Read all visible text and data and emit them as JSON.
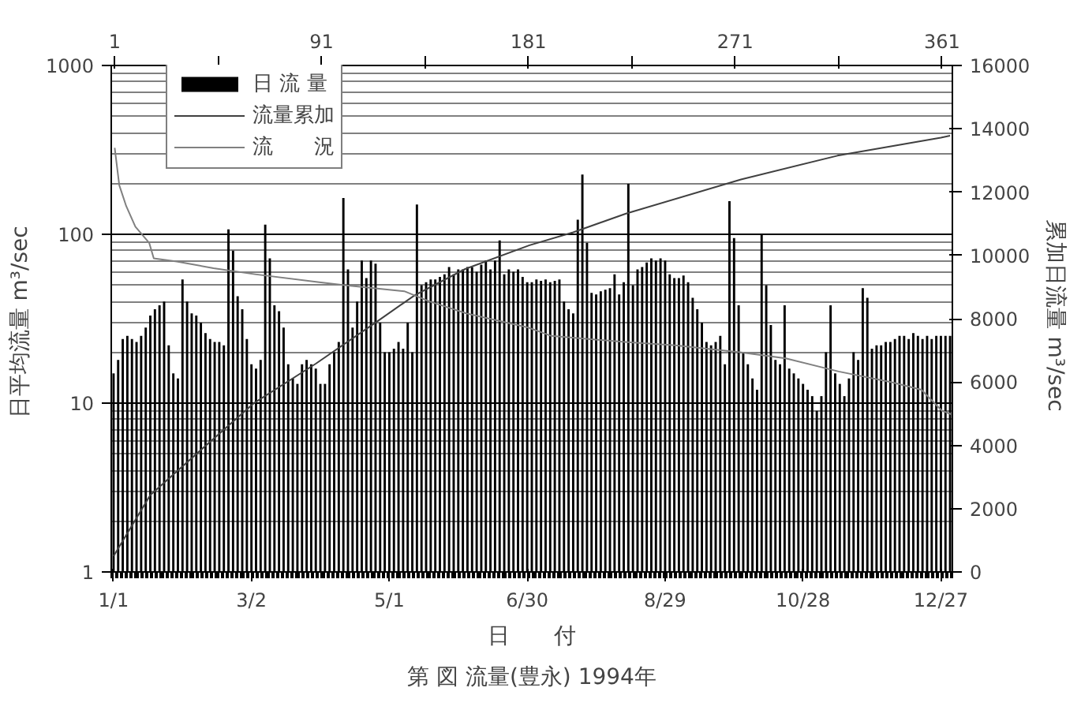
{
  "chart_data": {
    "type": "bar",
    "title": "第 図 流量(豊永) 1994年",
    "xlabel": "日　　付",
    "ylabel": "日平均流量  m³/sec",
    "y2label": "累加日流量  m³/sec",
    "xlim": [
      "1993-12-31T00:00",
      "1995-01-01T00:00"
    ],
    "xticks": [
      {
        "value": "1994-01-01",
        "label": "1/1"
      },
      {
        "value": "1994-03-02",
        "label": "3/2"
      },
      {
        "value": "1994-05-01",
        "label": "5/1"
      },
      {
        "value": "1994-06-30",
        "label": "6/30"
      },
      {
        "value": "1994-08-29",
        "label": "8/29"
      },
      {
        "value": "1994-10-28",
        "label": "10/28"
      },
      {
        "value": "1994-12-27",
        "label": "12/27"
      }
    ],
    "x2lim": [
      -0.5,
      365.5
    ],
    "x2ticks": [
      1,
      {
        "value": 46,
        "label": null
      },
      91,
      {
        "value": 136,
        "label": null
      },
      181,
      {
        "value": 226,
        "label": null
      },
      271,
      {
        "value": 316,
        "label": null
      },
      361
    ],
    "ylim": [
      1,
      1000
    ],
    "yticks": [
      1,
      10,
      100,
      1000
    ],
    "y2lim": [
      0,
      16000
    ],
    "y2ticks": [
      0,
      2000,
      4000,
      6000,
      8000,
      10000,
      12000,
      14000,
      16000
    ],
    "log": "y",
    "grid": true,
    "legend": "top left",
    "series": [
      {
        "name": "日 流 量",
        "color": "#000000",
        "x": [
          "1994-01-01",
          "1994-01-03",
          "1994-01-05",
          "1994-01-07",
          "1994-01-09",
          "1994-01-11",
          "1994-01-13",
          "1994-01-15",
          "1994-01-17",
          "1994-01-19",
          "1994-01-21",
          "1994-01-23",
          "1994-01-25",
          "1994-01-27",
          "1994-01-29",
          "1994-01-31",
          "1994-02-02",
          "1994-02-04",
          "1994-02-06",
          "1994-02-08",
          "1994-02-10",
          "1994-02-12",
          "1994-02-14",
          "1994-02-16",
          "1994-02-18",
          "1994-02-20",
          "1994-02-22",
          "1994-02-24",
          "1994-02-26",
          "1994-02-28",
          "1994-03-02",
          "1994-03-04",
          "1994-03-06",
          "1994-03-08",
          "1994-03-10",
          "1994-03-12",
          "1994-03-14",
          "1994-03-16",
          "1994-03-18",
          "1994-03-20",
          "1994-03-22",
          "1994-03-24",
          "1994-03-26",
          "1994-03-28",
          "1994-03-30",
          "1994-04-01",
          "1994-04-03",
          "1994-04-05",
          "1994-04-07",
          "1994-04-09",
          "1994-04-11",
          "1994-04-13",
          "1994-04-15",
          "1994-04-17",
          "1994-04-19",
          "1994-04-21",
          "1994-04-23",
          "1994-04-25",
          "1994-04-27",
          "1994-04-29",
          "1994-05-01",
          "1994-05-03",
          "1994-05-05",
          "1994-05-07",
          "1994-05-09",
          "1994-05-11",
          "1994-05-13",
          "1994-05-15",
          "1994-05-17",
          "1994-05-19",
          "1994-05-21",
          "1994-05-23",
          "1994-05-25",
          "1994-05-27",
          "1994-05-29",
          "1994-05-31",
          "1994-06-02",
          "1994-06-04",
          "1994-06-06",
          "1994-06-08",
          "1994-06-10",
          "1994-06-12",
          "1994-06-14",
          "1994-06-16",
          "1994-06-18",
          "1994-06-20",
          "1994-06-22",
          "1994-06-24",
          "1994-06-26",
          "1994-06-28",
          "1994-06-30",
          "1994-07-02",
          "1994-07-04",
          "1994-07-06",
          "1994-07-08",
          "1994-07-10",
          "1994-07-12",
          "1994-07-14",
          "1994-07-16",
          "1994-07-18",
          "1994-07-20",
          "1994-07-22",
          "1994-07-24",
          "1994-07-26",
          "1994-07-28",
          "1994-07-30",
          "1994-08-01",
          "1994-08-03",
          "1994-08-05",
          "1994-08-07",
          "1994-08-09",
          "1994-08-11",
          "1994-08-13",
          "1994-08-15",
          "1994-08-17",
          "1994-08-19",
          "1994-08-21",
          "1994-08-23",
          "1994-08-25",
          "1994-08-27",
          "1994-08-29",
          "1994-08-31",
          "1994-09-02",
          "1994-09-04",
          "1994-09-06",
          "1994-09-08",
          "1994-09-10",
          "1994-09-12",
          "1994-09-14",
          "1994-09-16",
          "1994-09-18",
          "1994-09-20",
          "1994-09-22",
          "1994-09-24",
          "1994-09-26",
          "1994-09-28",
          "1994-09-30",
          "1994-10-02",
          "1994-10-04",
          "1994-10-06",
          "1994-10-08",
          "1994-10-10",
          "1994-10-12",
          "1994-10-14",
          "1994-10-16",
          "1994-10-18",
          "1994-10-20",
          "1994-10-22",
          "1994-10-24",
          "1994-10-26",
          "1994-10-28",
          "1994-10-30",
          "1994-11-01",
          "1994-11-03",
          "1994-11-05",
          "1994-11-07",
          "1994-11-09",
          "1994-11-11",
          "1994-11-13",
          "1994-11-15",
          "1994-11-17",
          "1994-11-19",
          "1994-11-21",
          "1994-11-23",
          "1994-11-25",
          "1994-11-27",
          "1994-11-29",
          "1994-12-01",
          "1994-12-03",
          "1994-12-05",
          "1994-12-07",
          "1994-12-09",
          "1994-12-11",
          "1994-12-13",
          "1994-12-15",
          "1994-12-17",
          "1994-12-19",
          "1994-12-21",
          "1994-12-23",
          "1994-12-25",
          "1994-12-27",
          "1994-12-29",
          "1994-12-31"
        ],
        "values": [
          15,
          18,
          24,
          25,
          24,
          23,
          25,
          28,
          33,
          36,
          38,
          40,
          22,
          15,
          14,
          54,
          40,
          34,
          33,
          30,
          26,
          24,
          23,
          23,
          22,
          107,
          80,
          43,
          36,
          24,
          17,
          16,
          18,
          114,
          72,
          38,
          35,
          28,
          17,
          14,
          13,
          17,
          18,
          17,
          16,
          13,
          13,
          17,
          20,
          23,
          164,
          62,
          28,
          40,
          70,
          55,
          70,
          67,
          30,
          20,
          20,
          21,
          23,
          21,
          30,
          20,
          150,
          50,
          52,
          54,
          54,
          56,
          58,
          64,
          58,
          62,
          62,
          64,
          64,
          60,
          66,
          70,
          62,
          70,
          92,
          58,
          62,
          60,
          62,
          56,
          52,
          52,
          54,
          53,
          54,
          52,
          53,
          54,
          40,
          36,
          34,
          122,
          226,
          89,
          45,
          44,
          46,
          47,
          48,
          58,
          44,
          52,
          199,
          50,
          62,
          64,
          68,
          72,
          70,
          72,
          70,
          58,
          55,
          55,
          57,
          52,
          42,
          36,
          30,
          23,
          22,
          23,
          25,
          17,
          157,
          95,
          38,
          20,
          17,
          14,
          12,
          99,
          50,
          29,
          18,
          17,
          38,
          16,
          15,
          14,
          13,
          12,
          11,
          9,
          11,
          20,
          38,
          15,
          13,
          11,
          14,
          20,
          18,
          48,
          42,
          21,
          22,
          22,
          23,
          23,
          24,
          25,
          25,
          24,
          26,
          25,
          24,
          25,
          24,
          25,
          25,
          25,
          25
        ]
      },
      {
        "name": "流量累加",
        "type": "line",
        "axis": "y2",
        "color": "#404040",
        "x": [
          "1994-01-01",
          "1994-01-17",
          "1994-02-09",
          "1994-03-03",
          "1994-03-30",
          "1994-04-26",
          "1994-05-12",
          "1994-06-03",
          "1994-07-01",
          "1994-07-20",
          "1994-08-12",
          "1994-10-01",
          "1994-11-12",
          "1994-12-27",
          "1994-12-31"
        ],
        "values": [
          500,
          2430,
          3920,
          5330,
          6580,
          7930,
          8740,
          9570,
          10320,
          10730,
          11320,
          12400,
          13150,
          13720,
          13780
        ]
      },
      {
        "name": "流　　況",
        "type": "line",
        "axis": "x2",
        "color": "#808080",
        "x": [
          1,
          3,
          6,
          10,
          16,
          18,
          28,
          44,
          62,
          90,
          101,
          127,
          138,
          154,
          181,
          191,
          223,
          245,
          273,
          293,
          316,
          339,
          352,
          361,
          365
        ],
        "values": [
          325,
          195,
          147,
          111,
          89,
          72,
          69,
          63,
          58,
          52,
          50,
          46,
          40,
          34,
          28,
          25,
          23,
          22,
          20,
          18.4,
          15.4,
          13.3,
          12,
          9,
          8.6
        ]
      }
    ]
  }
}
